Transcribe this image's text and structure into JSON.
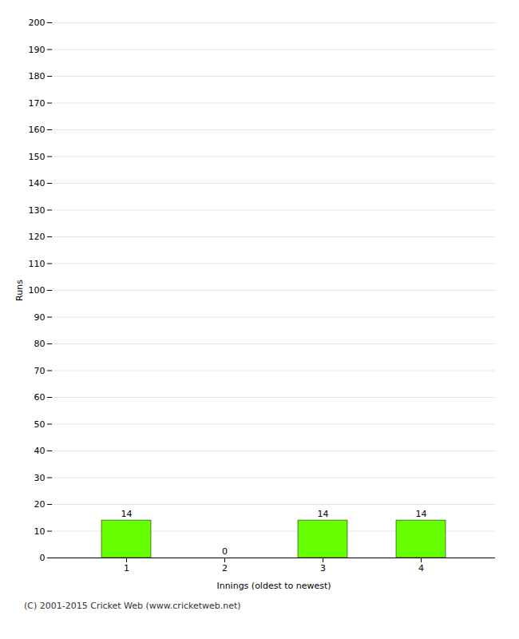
{
  "chart_data": {
    "type": "bar",
    "categories": [
      "1",
      "2",
      "3",
      "4"
    ],
    "values": [
      14,
      0,
      14,
      14
    ],
    "color": "#66ff00",
    "xlabel": "Innings (oldest to newest)",
    "ylabel": "Runs",
    "ylim": [
      0,
      200
    ],
    "yticks": [
      0,
      10,
      20,
      30,
      40,
      50,
      60,
      70,
      80,
      90,
      100,
      110,
      120,
      130,
      140,
      150,
      160,
      170,
      180,
      190,
      200
    ],
    "grid": true,
    "data_labels": true,
    "caption": "(C) 2001-2015 Cricket Web (www.cricketweb.net)"
  }
}
